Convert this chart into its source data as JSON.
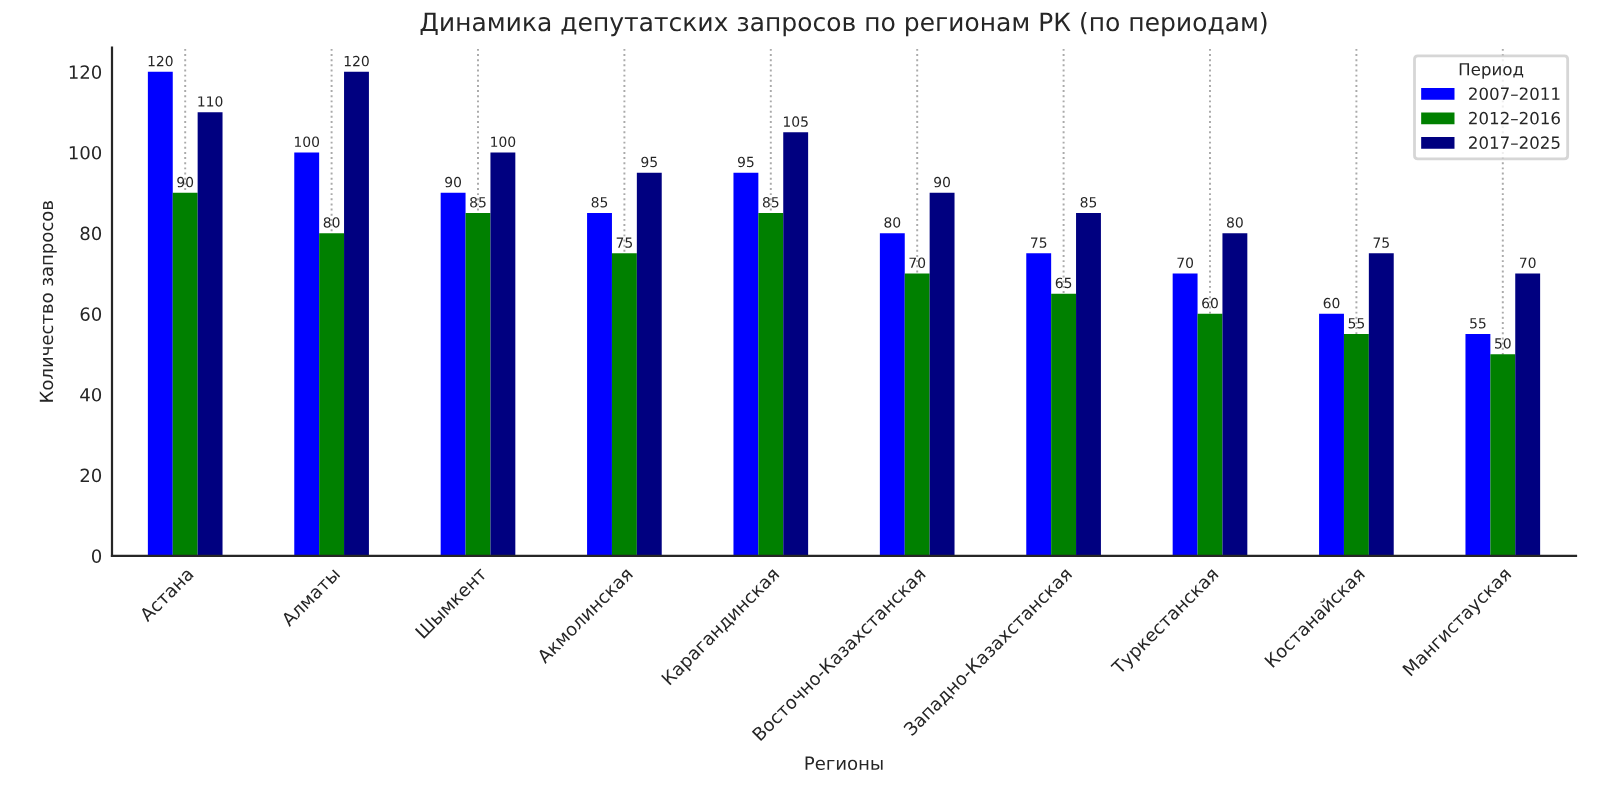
{
  "chart_data": {
    "type": "bar",
    "title": "Динамика депутатских запросов по регионам РК (по периодам)",
    "xlabel": "Регионы",
    "ylabel": "Количество запросов",
    "legend_title": "Период",
    "categories": [
      "Астана",
      "Алматы",
      "Шымкент",
      "Акмолинская",
      "Карагандинская",
      "Восточно-Казахстанская",
      "Западно-Казахстанская",
      "Туркестанская",
      "Костанайская",
      "Мангистауская"
    ],
    "series": [
      {
        "name": "2007–2011",
        "color": "#0000ff",
        "values": [
          120,
          100,
          90,
          85,
          95,
          80,
          75,
          70,
          60,
          55
        ]
      },
      {
        "name": "2012–2016",
        "color": "#008000",
        "values": [
          90,
          80,
          85,
          75,
          85,
          70,
          65,
          60,
          55,
          50
        ]
      },
      {
        "name": "2017–2025",
        "color": "#000080",
        "values": [
          110,
          120,
          100,
          95,
          105,
          90,
          85,
          80,
          75,
          70
        ]
      }
    ],
    "ylim": [
      0,
      126
    ],
    "yticks": [
      0,
      20,
      40,
      60,
      80,
      100,
      120
    ],
    "grid": "x",
    "legend": "top right",
    "data_labels": true
  }
}
